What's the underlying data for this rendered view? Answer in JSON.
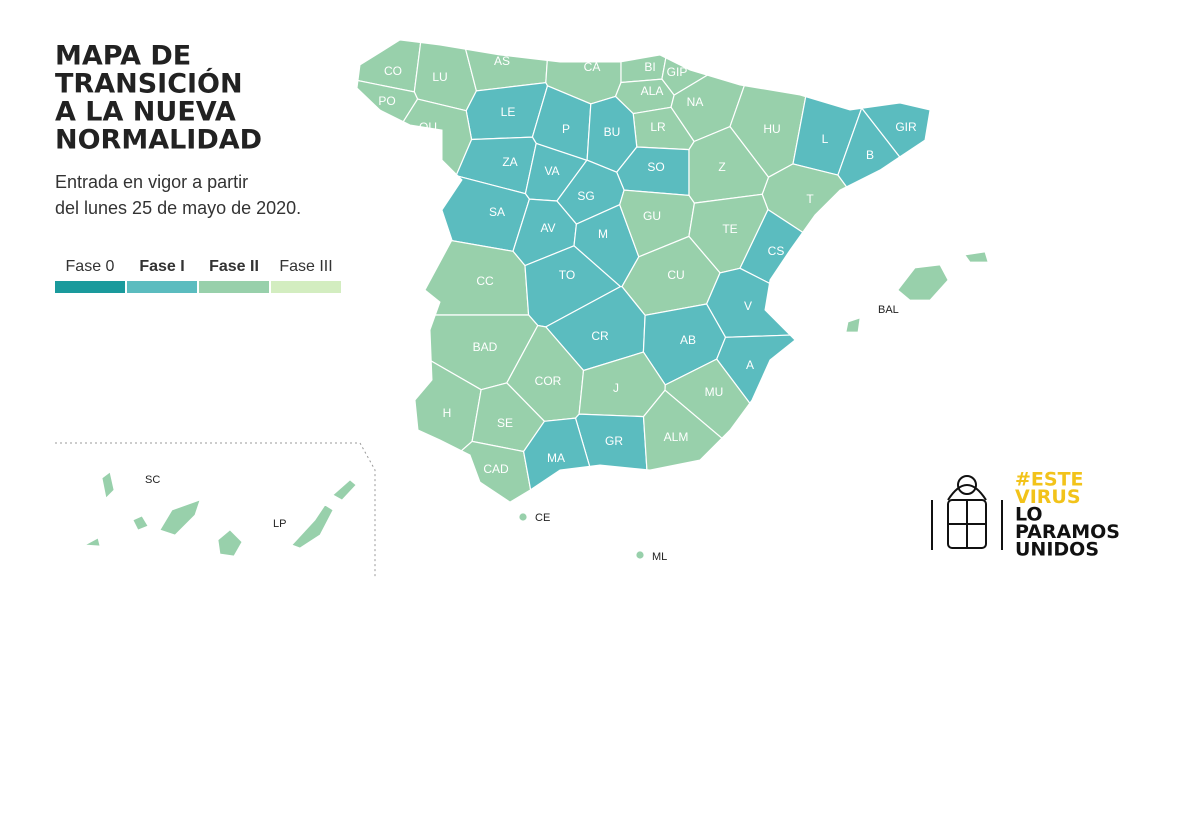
{
  "header": {
    "title_lines": [
      "MAPA DE",
      "TRANSICIÓN",
      "A LA NUEVA",
      "NORMALIDAD"
    ],
    "subtitle_lines": [
      "Entrada en vigor a partir",
      "del lunes 25 de mayo de 2020."
    ]
  },
  "legend": [
    {
      "name": "Fase 0",
      "color": "#1a9a9c"
    },
    {
      "name": "Fase I",
      "color": "#5bbcbf"
    },
    {
      "name": "Fase II",
      "color": "#98d0ab"
    },
    {
      "name": "Fase III",
      "color": "#d3edc0"
    }
  ],
  "provinces": [
    {
      "label": "CO",
      "phase": "Fase II"
    },
    {
      "label": "LU",
      "phase": "Fase II"
    },
    {
      "label": "AS",
      "phase": "Fase II"
    },
    {
      "label": "CA",
      "phase": "Fase II"
    },
    {
      "label": "BI",
      "phase": "Fase II"
    },
    {
      "label": "GIP",
      "phase": "Fase II"
    },
    {
      "label": "ALA",
      "phase": "Fase II"
    },
    {
      "label": "NA",
      "phase": "Fase II"
    },
    {
      "label": "LR",
      "phase": "Fase II"
    },
    {
      "label": "HU",
      "phase": "Fase II"
    },
    {
      "label": "GIR",
      "phase": "Fase I"
    },
    {
      "label": "L",
      "phase": "Fase I"
    },
    {
      "label": "B",
      "phase": "Fase I"
    },
    {
      "label": "T",
      "phase": "Fase II"
    },
    {
      "label": "LE",
      "phase": "Fase I"
    },
    {
      "label": "P",
      "phase": "Fase I"
    },
    {
      "label": "BU",
      "phase": "Fase I"
    },
    {
      "label": "PO",
      "phase": "Fase II"
    },
    {
      "label": "OU",
      "phase": "Fase II"
    },
    {
      "label": "ZA",
      "phase": "Fase I"
    },
    {
      "label": "VA",
      "phase": "Fase I"
    },
    {
      "label": "SO",
      "phase": "Fase I"
    },
    {
      "label": "Z",
      "phase": "Fase II"
    },
    {
      "label": "SA",
      "phase": "Fase I"
    },
    {
      "label": "SG",
      "phase": "Fase I"
    },
    {
      "label": "AV",
      "phase": "Fase I"
    },
    {
      "label": "M",
      "phase": "Fase I"
    },
    {
      "label": "GU",
      "phase": "Fase II"
    },
    {
      "label": "TE",
      "phase": "Fase II"
    },
    {
      "label": "CS",
      "phase": "Fase I"
    },
    {
      "label": "CC",
      "phase": "Fase II"
    },
    {
      "label": "TO",
      "phase": "Fase I"
    },
    {
      "label": "CU",
      "phase": "Fase II"
    },
    {
      "label": "V",
      "phase": "Fase I"
    },
    {
      "label": "BAD",
      "phase": "Fase II"
    },
    {
      "label": "CR",
      "phase": "Fase I"
    },
    {
      "label": "AB",
      "phase": "Fase I"
    },
    {
      "label": "A",
      "phase": "Fase I"
    },
    {
      "label": "COR",
      "phase": "Fase II"
    },
    {
      "label": "J",
      "phase": "Fase II"
    },
    {
      "label": "MU",
      "phase": "Fase II"
    },
    {
      "label": "H",
      "phase": "Fase II"
    },
    {
      "label": "SE",
      "phase": "Fase II"
    },
    {
      "label": "GR",
      "phase": "Fase I"
    },
    {
      "label": "ALM",
      "phase": "Fase II"
    },
    {
      "label": "CAD",
      "phase": "Fase II"
    },
    {
      "label": "MA",
      "phase": "Fase I"
    }
  ],
  "territories": [
    {
      "label": "BAL",
      "phase": "Fase II"
    },
    {
      "label": "CE",
      "phase": "Fase II"
    },
    {
      "label": "ML",
      "phase": "Fase II"
    },
    {
      "label": "SC",
      "phase": "Fase II"
    },
    {
      "label": "LP",
      "phase": "Fase II"
    }
  ],
  "logo": {
    "lines": [
      "#ESTE",
      "VIRUS",
      "LO",
      "PARAMOS",
      "UNIDOS"
    ]
  }
}
